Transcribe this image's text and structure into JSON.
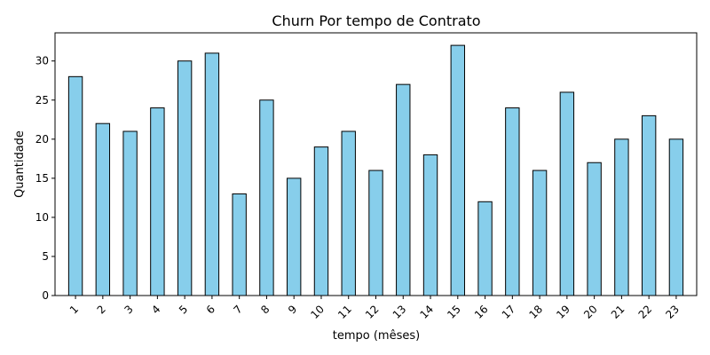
{
  "chart_data": {
    "type": "bar",
    "title": "Churn Por tempo de Contrato",
    "xlabel": "tempo (mêses)",
    "ylabel": "Quantidade",
    "categories": [
      "1",
      "2",
      "3",
      "4",
      "5",
      "6",
      "7",
      "8",
      "9",
      "10",
      "11",
      "12",
      "13",
      "14",
      "15",
      "16",
      "17",
      "18",
      "19",
      "20",
      "21",
      "22",
      "23"
    ],
    "values": [
      28,
      22,
      21,
      24,
      30,
      31,
      13,
      25,
      15,
      19,
      21,
      16,
      27,
      18,
      32,
      12,
      24,
      16,
      26,
      17,
      20,
      23,
      20
    ],
    "ylim": [
      0,
      33.6
    ],
    "yticks": [
      0,
      5,
      10,
      15,
      20,
      25,
      30
    ],
    "grid": false,
    "bar_color": "#87ceeb",
    "edge_color": "#000000"
  }
}
